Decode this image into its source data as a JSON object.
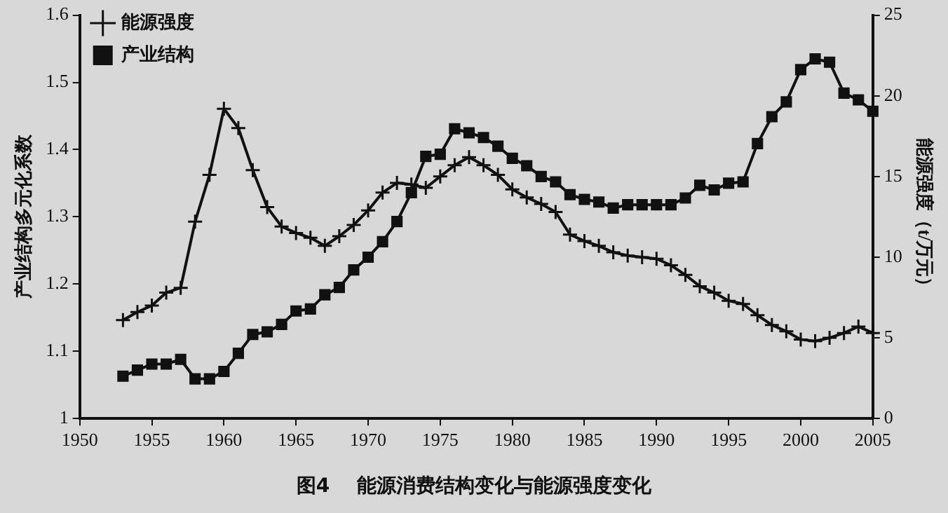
{
  "chart_data": {
    "type": "line",
    "title": "图4    能源消费结构变化与能源强度变化",
    "ylabel": "产业结构多元化系数",
    "y2label": "能源强度（t/万元）",
    "x": [
      1953,
      1954,
      1955,
      1956,
      1957,
      1958,
      1959,
      1960,
      1961,
      1962,
      1963,
      1964,
      1965,
      1966,
      1967,
      1968,
      1969,
      1970,
      1971,
      1972,
      1973,
      1974,
      1975,
      1976,
      1977,
      1978,
      1979,
      1980,
      1981,
      1982,
      1983,
      1984,
      1985,
      1986,
      1987,
      1988,
      1989,
      1990,
      1991,
      1992,
      1993,
      1994,
      1995,
      1996,
      1997,
      1998,
      1999,
      2000,
      2001,
      2002,
      2003,
      2004,
      2005
    ],
    "series": [
      {
        "name": "产业结构",
        "color": "#111111",
        "marker": "square",
        "values": [
          1.063,
          1.072,
          1.081,
          1.081,
          1.088,
          1.059,
          1.059,
          1.07,
          1.097,
          1.125,
          1.129,
          1.14,
          1.16,
          1.163,
          1.184,
          1.195,
          1.221,
          1.24,
          1.263,
          1.293,
          1.336,
          1.39,
          1.393,
          1.431,
          1.425,
          1.418,
          1.405,
          1.387,
          1.376,
          1.36,
          1.352,
          1.333,
          1.326,
          1.322,
          1.313,
          1.318,
          1.318,
          1.318,
          1.318,
          1.328,
          1.347,
          1.34,
          1.35,
          1.352,
          1.409,
          1.449,
          1.471,
          1.519,
          1.535,
          1.53,
          1.484,
          1.474,
          1.457
        ]
      },
      {
        "name": "能源强度",
        "color": "#111111",
        "marker": "cross",
        "axis": "y2",
        "values": [
          6.1,
          6.6,
          7.0,
          7.8,
          8.1,
          12.2,
          15.1,
          19.2,
          18.0,
          15.4,
          13.1,
          11.9,
          11.5,
          11.2,
          10.7,
          11.3,
          12.0,
          12.9,
          14.0,
          14.6,
          14.5,
          14.3,
          15.0,
          15.7,
          16.2,
          15.7,
          15.1,
          14.2,
          13.7,
          13.3,
          12.8,
          11.4,
          11.0,
          10.7,
          10.3,
          10.1,
          10.0,
          9.9,
          9.5,
          8.9,
          8.2,
          7.8,
          7.3,
          7.1,
          6.4,
          5.8,
          5.4,
          4.9,
          4.8,
          5.0,
          5.3,
          5.7,
          5.3
        ]
      }
    ],
    "xlim": [
      1950,
      2005
    ],
    "xticks": [
      1950,
      1955,
      1960,
      1965,
      1970,
      1975,
      1980,
      1985,
      1990,
      1995,
      2000,
      2005
    ],
    "ylim": [
      1,
      1.6
    ],
    "yticks": [
      1,
      1.1,
      1.2,
      1.3,
      1.4,
      1.5,
      1.6
    ],
    "y2lim": [
      0,
      25
    ],
    "y2ticks": [
      0,
      5,
      10,
      15,
      20,
      25
    ],
    "grid": false,
    "legend": "top left",
    "line_style": "solid"
  }
}
